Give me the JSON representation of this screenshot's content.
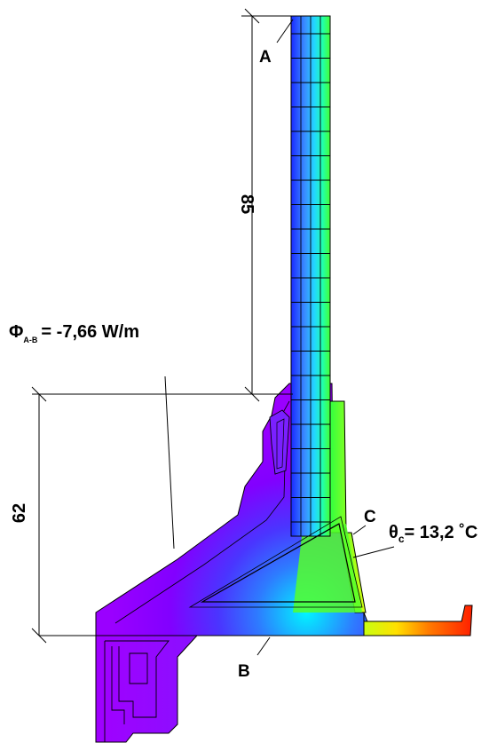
{
  "labels": {
    "point_a": "A",
    "point_b": "B",
    "point_c": "C",
    "dim_upper": "85",
    "dim_lower": "62",
    "heat_flow_symbol": "Φ",
    "heat_flow_subscript": "A-B",
    "heat_flow_value": "= -7,66 W/m",
    "temp_symbol": "θ",
    "temp_subscript": "c",
    "temp_value": "= 13,2 ˚C"
  },
  "colors": {
    "cold": "#8a00ff",
    "cool_blue": "#1f3cff",
    "cyan": "#00f0ff",
    "green": "#33ff33",
    "yellow": "#e0ff00",
    "warm": "#ff3300",
    "outline": "#000000"
  }
}
